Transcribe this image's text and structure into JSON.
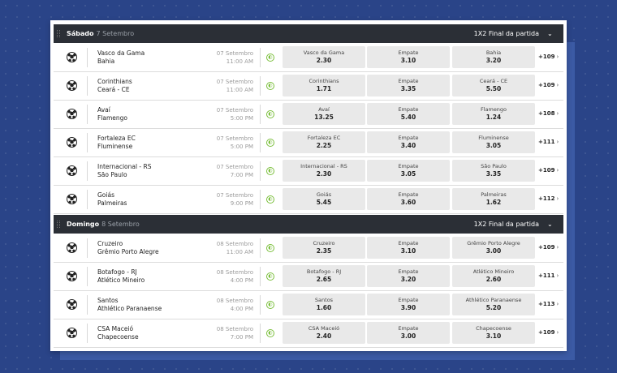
{
  "market_label": "1X2 Final da partida",
  "sections": [
    {
      "day": "Sábado",
      "date": "7 Setembro",
      "matches": [
        {
          "home": "Vasco da Gama",
          "away": "Bahia",
          "date": "07 Setembro",
          "time": "11:00 AM",
          "odd1": "2.30",
          "oddx": "3.10",
          "odd2": "3.20",
          "draw_label": "Empate",
          "more": "+109"
        },
        {
          "home": "Corinthians",
          "away": "Ceará - CE",
          "date": "07 Setembro",
          "time": "11:00 AM",
          "odd1": "1.71",
          "oddx": "3.35",
          "odd2": "5.50",
          "draw_label": "Empate",
          "more": "+109"
        },
        {
          "home": "Avaí",
          "away": "Flamengo",
          "date": "07 Setembro",
          "time": "5:00 PM",
          "odd1": "13.25",
          "oddx": "5.40",
          "odd2": "1.24",
          "draw_label": "Empate",
          "more": "+108"
        },
        {
          "home": "Fortaleza EC",
          "away": "Fluminense",
          "date": "07 Setembro",
          "time": "5:00 PM",
          "odd1": "2.25",
          "oddx": "3.40",
          "odd2": "3.05",
          "draw_label": "Empate",
          "more": "+111"
        },
        {
          "home": "Internacional - RS",
          "away": "São Paulo",
          "date": "07 Setembro",
          "time": "7:00 PM",
          "odd1": "2.30",
          "oddx": "3.05",
          "odd2": "3.35",
          "draw_label": "Empate",
          "more": "+109"
        },
        {
          "home": "Goiás",
          "away": "Palmeiras",
          "date": "07 Setembro",
          "time": "9:00 PM",
          "odd1": "5.45",
          "oddx": "3.60",
          "odd2": "1.62",
          "draw_label": "Empate",
          "more": "+112"
        }
      ]
    },
    {
      "day": "Domingo",
      "date": "8 Setembro",
      "matches": [
        {
          "home": "Cruzeiro",
          "away": "Grêmio Porto Alegre",
          "date": "08 Setembro",
          "time": "11:00 AM",
          "odd1": "2.35",
          "oddx": "3.10",
          "odd2": "3.00",
          "draw_label": "Empate",
          "more": "+109"
        },
        {
          "home": "Botafogo - RJ",
          "away": "Atlético Mineiro",
          "date": "08 Setembro",
          "time": "4:00 PM",
          "odd1": "2.65",
          "oddx": "3.20",
          "odd2": "2.60",
          "draw_label": "Empate",
          "more": "+111"
        },
        {
          "home": "Santos",
          "away": "Athlético Paranaense",
          "date": "08 Setembro",
          "time": "4:00 PM",
          "odd1": "1.60",
          "oddx": "3.90",
          "odd2": "5.20",
          "draw_label": "Empate",
          "more": "+113"
        },
        {
          "home": "CSA Maceió",
          "away": "Chapecoense",
          "date": "08 Setembro",
          "time": "7:00 PM",
          "odd1": "2.40",
          "oddx": "3.00",
          "odd2": "3.10",
          "draw_label": "Empate",
          "more": "+109"
        }
      ]
    }
  ]
}
